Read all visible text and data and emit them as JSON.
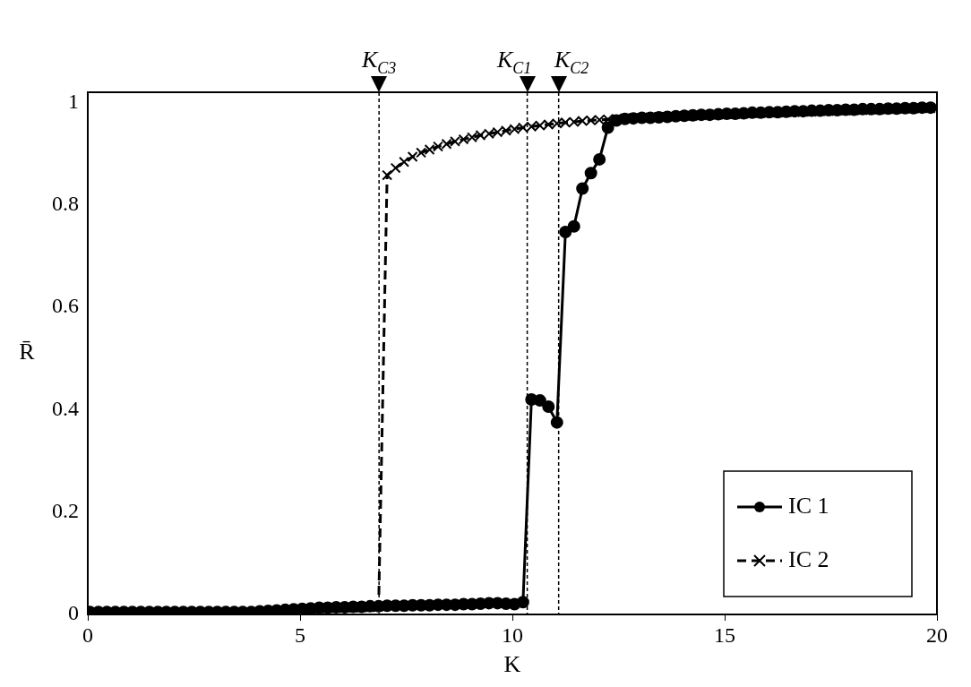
{
  "chart_data": {
    "type": "line",
    "xlabel": "K",
    "ylabel": "R̄",
    "x": [
      0.05,
      0.25,
      0.45,
      0.65,
      0.85,
      1.05,
      1.25,
      1.45,
      1.65,
      1.85,
      2.05,
      2.25,
      2.45,
      2.65,
      2.85,
      3.05,
      3.25,
      3.45,
      3.65,
      3.85,
      4.05,
      4.25,
      4.45,
      4.65,
      4.85,
      5.05,
      5.25,
      5.45,
      5.65,
      5.85,
      6.05,
      6.25,
      6.45,
      6.65,
      6.85,
      7.05,
      7.25,
      7.45,
      7.65,
      7.85,
      8.05,
      8.25,
      8.45,
      8.65,
      8.85,
      9.05,
      9.25,
      9.45,
      9.65,
      9.85,
      10.05,
      10.25,
      10.45,
      10.65,
      10.85,
      11.05,
      11.25,
      11.45,
      11.65,
      11.85,
      12.05,
      12.25,
      12.45,
      12.65,
      12.85,
      13.05,
      13.25,
      13.45,
      13.65,
      13.85,
      14.05,
      14.25,
      14.45,
      14.65,
      14.85,
      15.05,
      15.25,
      15.45,
      15.65,
      15.85,
      16.05,
      16.25,
      16.45,
      16.65,
      16.85,
      17.05,
      17.25,
      17.45,
      17.65,
      17.85,
      18.05,
      18.25,
      18.45,
      18.65,
      18.85,
      19.05,
      19.25,
      19.45,
      19.65,
      19.85
    ],
    "series": [
      {
        "name": "IC 1",
        "color": "#000000",
        "marker": "circle",
        "line_style": "solid",
        "values": [
          0.005,
          0.005,
          0.005,
          0.005,
          0.005,
          0.005,
          0.005,
          0.005,
          0.005,
          0.005,
          0.005,
          0.005,
          0.005,
          0.005,
          0.005,
          0.005,
          0.005,
          0.005,
          0.005,
          0.005,
          0.006,
          0.007,
          0.008,
          0.009,
          0.01,
          0.011,
          0.012,
          0.013,
          0.013,
          0.014,
          0.014,
          0.015,
          0.015,
          0.016,
          0.016,
          0.017,
          0.017,
          0.017,
          0.018,
          0.018,
          0.018,
          0.019,
          0.019,
          0.019,
          0.02,
          0.02,
          0.021,
          0.022,
          0.022,
          0.021,
          0.02,
          0.024,
          0.42,
          0.418,
          0.406,
          0.375,
          0.747,
          0.758,
          0.832,
          0.862,
          0.889,
          0.951,
          0.965,
          0.968,
          0.969,
          0.97,
          0.97,
          0.971,
          0.972,
          0.973,
          0.974,
          0.975,
          0.976,
          0.976,
          0.977,
          0.978,
          0.978,
          0.979,
          0.98,
          0.98,
          0.981,
          0.981,
          0.982,
          0.983,
          0.983,
          0.984,
          0.984,
          0.985,
          0.985,
          0.986,
          0.986,
          0.987,
          0.987,
          0.987,
          0.988,
          0.988,
          0.989,
          0.989,
          0.99,
          0.99
        ]
      },
      {
        "name": "IC 2",
        "color": "#000000",
        "marker": "cross",
        "line_style": "dashed",
        "values": [
          0.003,
          0.003,
          0.003,
          0.003,
          0.003,
          0.003,
          0.003,
          0.003,
          0.003,
          0.003,
          0.003,
          0.003,
          0.003,
          0.003,
          0.003,
          0.003,
          0.003,
          0.003,
          0.003,
          0.003,
          0.004,
          0.005,
          0.006,
          0.007,
          0.008,
          0.009,
          0.01,
          0.011,
          0.012,
          0.012,
          0.013,
          0.013,
          0.014,
          0.014,
          0.015,
          0.858,
          0.872,
          0.884,
          0.894,
          0.902,
          0.908,
          0.914,
          0.919,
          0.924,
          0.928,
          0.932,
          0.936,
          0.939,
          0.942,
          0.945,
          0.948,
          0.951,
          0.953,
          0.955,
          0.957,
          0.959,
          0.961,
          0.962,
          0.964,
          0.965,
          0.966,
          0.967,
          0.968,
          0.969,
          0.97,
          0.97,
          0.971,
          0.972,
          0.972,
          0.973,
          0.974,
          0.974,
          0.975,
          0.976,
          0.976,
          0.977,
          0.977,
          0.978,
          0.979,
          0.979,
          0.98,
          0.98,
          0.981,
          0.981,
          0.982,
          0.982,
          0.983,
          0.983,
          0.984,
          0.984,
          0.985,
          0.985,
          0.986,
          0.986,
          0.987,
          0.987,
          0.988,
          0.988,
          0.989,
          0.989
        ]
      }
    ],
    "xlim": [
      0,
      20
    ],
    "xticks": [
      0,
      5,
      10,
      15,
      20
    ],
    "ylim": [
      0,
      1.02
    ],
    "yticks": [
      0,
      0.2,
      0.4,
      0.6,
      0.8,
      1
    ],
    "ref_lines": [
      {
        "axis": "x",
        "value": 6.86,
        "label": "K$_{C3}$",
        "line_style": "dashed"
      },
      {
        "axis": "x",
        "value": 10.35,
        "label": "K$_{C1}$",
        "line_style": "dashed"
      },
      {
        "axis": "x",
        "value": 11.09,
        "label": "K$_{C2}$",
        "line_style": "dashed"
      }
    ],
    "grid": false,
    "legend": "bottom right"
  }
}
